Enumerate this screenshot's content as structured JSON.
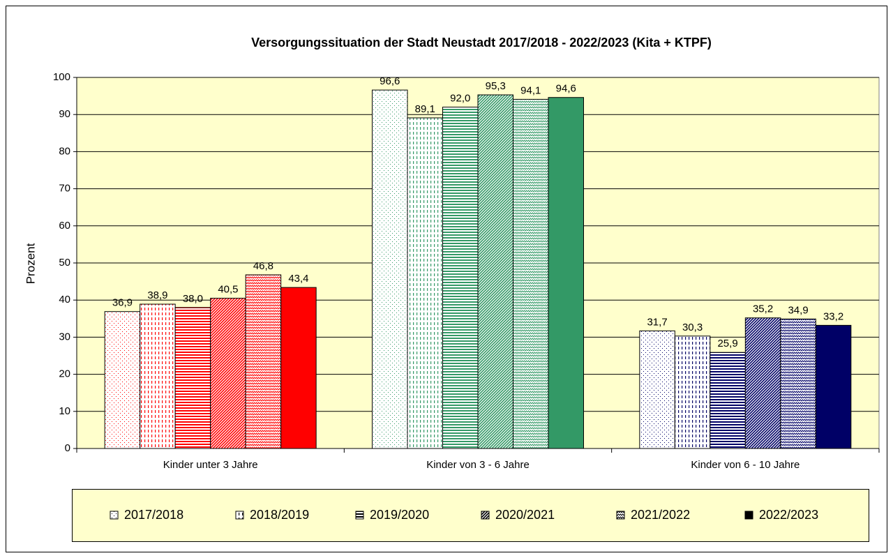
{
  "chart_data": {
    "type": "bar",
    "title": "Versorgungssituation der Stadt Neustadt 2017/2018 - 2022/2023 (Kita + KTPF)",
    "y_label": "Prozent",
    "categories": [
      "Kinder unter 3 Jahre",
      "Kinder von 3 - 6 Jahre",
      "Kinder von 6 - 10 Jahre"
    ],
    "category_colors": [
      "#ff0000",
      "#339966",
      "#000066"
    ],
    "series": [
      {
        "name": "2017/2018",
        "pattern": "dots",
        "values": [
          36.9,
          96.6,
          31.7
        ],
        "value_labels": [
          "36,9",
          "96,6",
          "31,7"
        ]
      },
      {
        "name": "2018/2019",
        "pattern": "vdash",
        "values": [
          38.9,
          89.1,
          30.3
        ],
        "value_labels": [
          "38,9",
          "89,1",
          "30,3"
        ]
      },
      {
        "name": "2019/2020",
        "pattern": "hlines",
        "values": [
          38.0,
          92.0,
          25.9
        ],
        "value_labels": [
          "38,0",
          "92,0",
          "25,9"
        ]
      },
      {
        "name": "2020/2021",
        "pattern": "diag",
        "values": [
          40.5,
          95.3,
          35.2
        ],
        "value_labels": [
          "40,5",
          "95,3",
          "35,2"
        ]
      },
      {
        "name": "2021/2022",
        "pattern": "weave",
        "values": [
          46.8,
          94.1,
          34.9
        ],
        "value_labels": [
          "46,8",
          "94,1",
          "34,9"
        ]
      },
      {
        "name": "2022/2023",
        "pattern": "solid",
        "values": [
          43.4,
          94.6,
          33.2
        ],
        "value_labels": [
          "43,4",
          "94,6",
          "33,2"
        ]
      }
    ],
    "ylim": [
      0,
      100
    ],
    "yticks": [
      0,
      10,
      20,
      30,
      40,
      50,
      60,
      70,
      80,
      90,
      100
    ],
    "grid": true,
    "plot_background": "#ffffcc",
    "legend": "bottom"
  }
}
